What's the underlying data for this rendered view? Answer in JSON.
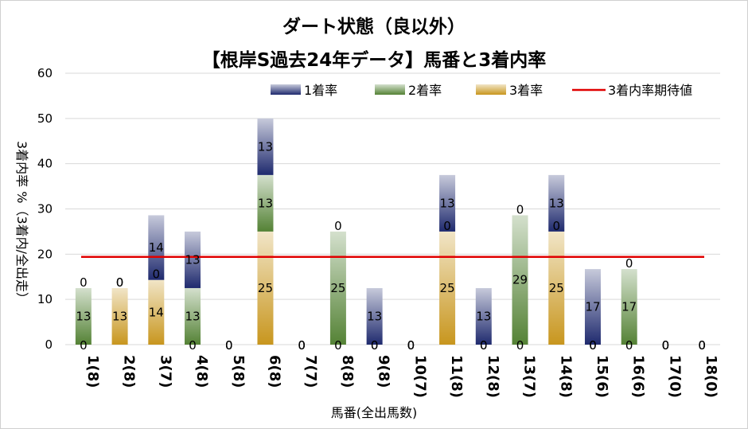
{
  "chart_data": {
    "type": "bar",
    "title": "ダート状態（良以外）",
    "subtitle": "【根岸S過去24年データ】馬番と3着内率",
    "xlabel": "馬番(全出馬数)",
    "ylabel": "3着内率 %（3着内/全出走）",
    "ylim": [
      0,
      60
    ],
    "yticks": [
      "0",
      "10",
      "20",
      "30",
      "40",
      "50",
      "60"
    ],
    "categories": [
      "1(8)",
      "2(8)",
      "3(7)",
      "4(8)",
      "5(8)",
      "6(8)",
      "7(7)",
      "8(8)",
      "9(8)",
      "10(7)",
      "11(8)",
      "12(8)",
      "13(7)",
      "14(8)",
      "15(6)",
      "16(6)",
      "17(0)",
      "18(0)"
    ],
    "series": [
      {
        "name": "3着率",
        "color": "#c8961e",
        "values": [
          0,
          12.5,
          14.3,
          0,
          0,
          25,
          0,
          0,
          0,
          0,
          25,
          0,
          0,
          25,
          0,
          0,
          0,
          0
        ],
        "labels": [
          "0",
          "13",
          "14",
          "0",
          "0",
          "25",
          "0",
          "0",
          "0",
          "0",
          "25",
          "0",
          "0",
          "25",
          "0",
          "0",
          "0",
          "0"
        ]
      },
      {
        "name": "2着率",
        "color": "#548235",
        "values": [
          12.5,
          0,
          0,
          12.5,
          0,
          12.5,
          0,
          25,
          0,
          0,
          0,
          0,
          28.6,
          0,
          0,
          16.7,
          0,
          0
        ],
        "labels": [
          "13",
          "0",
          "0",
          "13",
          "0",
          "13",
          "0",
          "25",
          "0",
          "0",
          "0",
          "0",
          "29",
          "0",
          "0",
          "17",
          "0",
          "0"
        ]
      },
      {
        "name": "1着率",
        "color": "#1f2a6e",
        "values": [
          0,
          0,
          14.3,
          12.5,
          0,
          12.5,
          0,
          0,
          12.5,
          0,
          12.5,
          12.5,
          0,
          12.5,
          16.7,
          0,
          0,
          0
        ],
        "labels": [
          "0",
          "0",
          "14",
          "13",
          "0",
          "13",
          "0",
          "0",
          "13",
          "0",
          "13",
          "13",
          "0",
          "13",
          "17",
          "0",
          "0",
          "0"
        ]
      }
    ],
    "expected_line": {
      "name": "3着内率期待値",
      "value": 19.4,
      "color": "#e00000"
    }
  }
}
